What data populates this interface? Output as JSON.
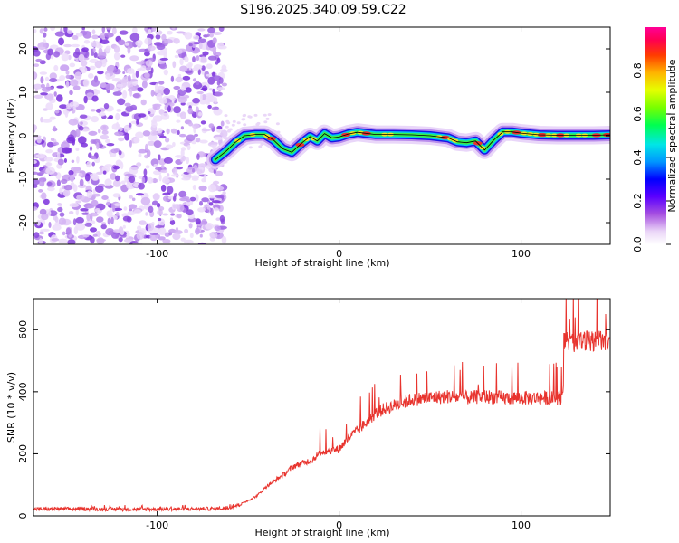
{
  "title": "S196.2025.340.09.59.C22",
  "chart_data": [
    {
      "type": "heatmap",
      "name": "spectrogram",
      "xlabel": "Height of straight line (km)",
      "ylabel": "Frequency (Hz)",
      "xlim": [
        -168,
        149
      ],
      "ylim": [
        -25,
        25
      ],
      "xticks": [
        -100,
        0,
        100
      ],
      "yticks": [
        20,
        10,
        0,
        -10,
        -20
      ],
      "noise_region_x": [
        -168,
        -63
      ],
      "ridge": {
        "x": [
          -68,
          -62,
          -57,
          -52,
          -46,
          -41,
          -36,
          -31,
          -26,
          -20,
          -16,
          -12,
          -8,
          -4,
          0,
          5,
          10,
          20,
          30,
          40,
          50,
          60,
          65,
          70,
          75,
          80,
          85,
          90,
          95,
          100,
          110,
          120,
          130,
          140,
          149
        ],
        "y": [
          -5.5,
          -3.5,
          -1.5,
          0,
          0.3,
          0.3,
          -1,
          -3,
          -3.8,
          -1.5,
          -0.2,
          -1.2,
          0.5,
          -0.5,
          -0.3,
          0.4,
          0.8,
          0.3,
          0.3,
          0.2,
          0,
          -0.5,
          -1.4,
          -1.6,
          -1.2,
          -3.3,
          -1,
          0.9,
          0.9,
          0.6,
          0.2,
          0.1,
          0.1,
          0.1,
          0.2
        ]
      }
    },
    {
      "type": "heatmap",
      "name": "colorbar",
      "label": "Normalized spectral amplitude",
      "range": [
        0,
        1
      ],
      "ticks": [
        "0.0",
        "0.2",
        "0.4",
        "0.6",
        "0.8"
      ]
    },
    {
      "type": "line",
      "name": "snr",
      "xlabel": "Height of straight line (km)",
      "ylabel": "SNR (10 * v/v)",
      "xlim": [
        -168,
        149
      ],
      "ylim": [
        0,
        700
      ],
      "xticks": [
        -100,
        0,
        100
      ],
      "yticks": [
        0,
        200,
        400,
        600
      ],
      "series": [
        {
          "name": "SNR",
          "color": "#e8342e",
          "x": [
            -168,
            -150,
            -130,
            -110,
            -90,
            -70,
            -62,
            -55,
            -50,
            -45,
            -40,
            -35,
            -30,
            -25,
            -20,
            -15,
            -10,
            -5,
            0,
            5,
            10,
            15,
            20,
            25,
            30,
            35,
            40,
            50,
            60,
            70,
            80,
            90,
            100,
            110,
            118,
            123,
            124,
            130,
            140,
            149
          ],
          "values": [
            22,
            22,
            22,
            21,
            22,
            23,
            25,
            35,
            50,
            65,
            95,
            115,
            135,
            160,
            170,
            180,
            205,
            210,
            215,
            250,
            275,
            300,
            330,
            345,
            355,
            365,
            375,
            380,
            385,
            380,
            385,
            380,
            380,
            380,
            380,
            380,
            560,
            560,
            565,
            560
          ]
        }
      ]
    }
  ]
}
